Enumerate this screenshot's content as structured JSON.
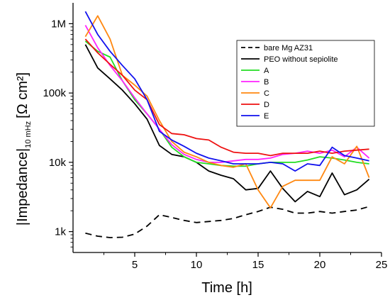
{
  "chart_data": {
    "type": "line",
    "title": "",
    "xlabel": "Time [h]",
    "ylabel": {
      "main": "|Impedance|",
      "sub": "10 mHz",
      "unit": "[Ω cm²]"
    },
    "xlim": [
      0,
      25
    ],
    "ylim": [
      500,
      2000000
    ],
    "yscale": "log",
    "grid": false,
    "legend_position": "top-right",
    "x_ticks": [
      {
        "value": 5,
        "label": "5"
      },
      {
        "value": 10,
        "label": "10"
      },
      {
        "value": 15,
        "label": "15"
      },
      {
        "value": 20,
        "label": "20"
      },
      {
        "value": 25,
        "label": "25"
      }
    ],
    "y_ticks": [
      {
        "value": 1000,
        "label": "1k"
      },
      {
        "value": 10000,
        "label": "10k"
      },
      {
        "value": 100000,
        "label": "100k"
      },
      {
        "value": 1000000,
        "label": "1M"
      }
    ],
    "series": [
      {
        "name": "bare Mg AZ31",
        "color": "#000000",
        "dash": "dashed",
        "x": [
          1,
          2,
          3,
          4,
          5,
          6,
          7,
          8,
          9,
          10,
          11,
          12,
          13,
          14,
          15,
          16,
          17,
          18,
          19,
          20,
          21,
          22,
          23,
          24
        ],
        "y": [
          950,
          860,
          820,
          830,
          920,
          1200,
          1750,
          1600,
          1450,
          1350,
          1400,
          1450,
          1550,
          1750,
          1950,
          2250,
          2100,
          1850,
          1850,
          1950,
          1850,
          1950,
          2050,
          2300
        ]
      },
      {
        "name": "PEO without sepiolite",
        "color": "#000000",
        "dash": "solid",
        "x": [
          1,
          2,
          3,
          4,
          5,
          6,
          7,
          8,
          9,
          10,
          11,
          12,
          13,
          14,
          15,
          16,
          17,
          18,
          19,
          20,
          21,
          22,
          23,
          24
        ],
        "y": [
          500000,
          230000,
          160000,
          110000,
          70000,
          42000,
          17500,
          13000,
          12000,
          10000,
          7500,
          6500,
          5800,
          4000,
          4200,
          7500,
          4200,
          2700,
          3800,
          3200,
          7000,
          3400,
          4000,
          5700
        ]
      },
      {
        "name": "A",
        "color": "#22dd22",
        "dash": "solid",
        "x": [
          1,
          2,
          3,
          4,
          5,
          6,
          7,
          8,
          9,
          10,
          11,
          12,
          13,
          14,
          15,
          16,
          17,
          18,
          19,
          20,
          21,
          22,
          23,
          24
        ],
        "y": [
          560000,
          400000,
          330000,
          150000,
          80000,
          50000,
          30000,
          16500,
          12000,
          10000,
          9500,
          9000,
          8800,
          8800,
          9500,
          10000,
          10000,
          10000,
          10800,
          12000,
          11500,
          10800,
          10000,
          9500
        ]
      },
      {
        "name": "B",
        "color": "#ff22ff",
        "dash": "solid",
        "x": [
          1,
          2,
          3,
          4,
          5,
          6,
          7,
          8,
          9,
          10,
          11,
          12,
          13,
          14,
          15,
          16,
          17,
          18,
          19,
          20,
          21,
          22,
          23,
          24
        ],
        "y": [
          950000,
          450000,
          250000,
          150000,
          85000,
          50000,
          30000,
          18000,
          13000,
          11000,
          10000,
          10000,
          10500,
          11000,
          11000,
          11500,
          13000,
          13500,
          14500,
          13500,
          15000,
          12000,
          16500,
          11500
        ]
      },
      {
        "name": "C",
        "color": "#ff8811",
        "dash": "solid",
        "x": [
          1,
          2,
          3,
          4,
          5,
          6,
          7,
          8,
          9,
          10,
          11,
          12,
          13,
          14,
          15,
          16,
          17,
          18,
          19,
          20,
          21,
          22,
          23,
          24
        ],
        "y": [
          650000,
          1300000,
          600000,
          180000,
          130000,
          90000,
          40000,
          20000,
          14000,
          12000,
          10000,
          9000,
          8500,
          9500,
          4000,
          2200,
          4500,
          5500,
          5500,
          5500,
          12000,
          9500,
          17000,
          6000
        ]
      },
      {
        "name": "D",
        "color": "#ee1111",
        "dash": "solid",
        "x": [
          1,
          2,
          3,
          4,
          5,
          6,
          7,
          8,
          9,
          10,
          11,
          12,
          13,
          14,
          15,
          16,
          17,
          18,
          19,
          20,
          21,
          22,
          23,
          24
        ],
        "y": [
          600000,
          380000,
          260000,
          180000,
          110000,
          80000,
          35000,
          26000,
          25000,
          22000,
          21000,
          16500,
          14000,
          13500,
          13500,
          12500,
          13500,
          13500,
          13500,
          14500,
          13500,
          14500,
          15000,
          15500
        ]
      },
      {
        "name": "E",
        "color": "#1111ee",
        "dash": "solid",
        "x": [
          1,
          2,
          3,
          4,
          5,
          6,
          7,
          8,
          9,
          10,
          11,
          12,
          13,
          14,
          15,
          16,
          17,
          18,
          19,
          20,
          21,
          22,
          23,
          24
        ],
        "y": [
          1500000,
          700000,
          400000,
          250000,
          160000,
          80000,
          28000,
          21000,
          17000,
          13500,
          11500,
          10500,
          9500,
          9500,
          9500,
          10000,
          9500,
          7500,
          9500,
          9000,
          16500,
          12500,
          11500,
          10500
        ]
      }
    ]
  }
}
